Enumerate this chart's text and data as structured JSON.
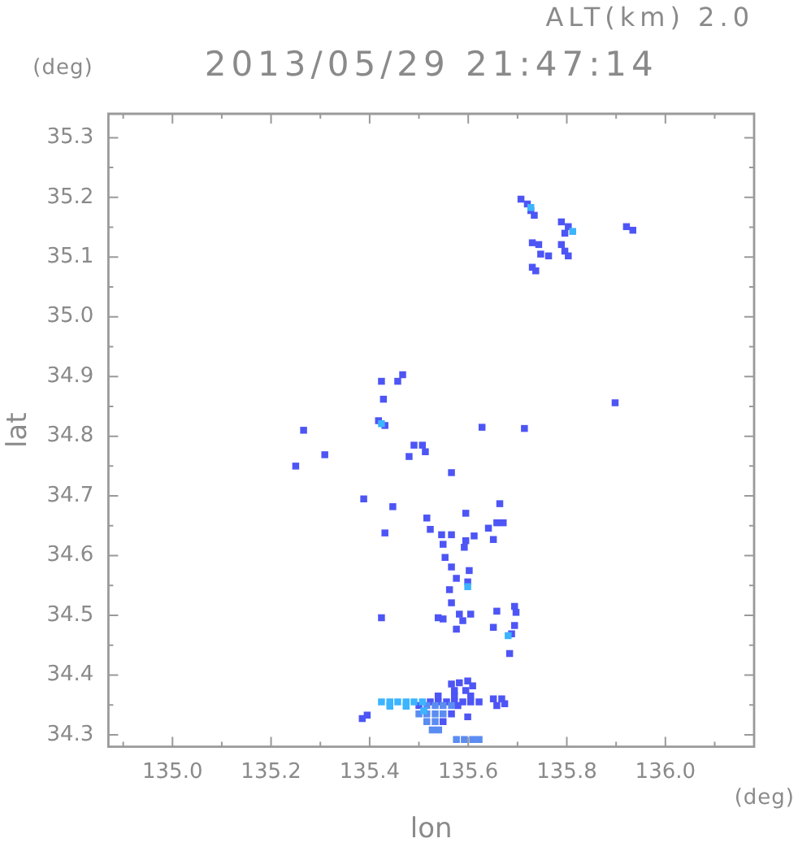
{
  "chart_data": {
    "type": "scatter",
    "title": "2013/05/29 21:47:14",
    "xlabel": "lon",
    "ylabel": "lat",
    "annotations": [
      "ALT(km) 2.0",
      "(deg)",
      "(deg)"
    ],
    "xlim": [
      134.87,
      136.18
    ],
    "ylim": [
      34.28,
      35.34
    ],
    "xticks": [
      {
        "value": 134.9,
        "label": null
      },
      {
        "value": 135.0,
        "label": "135.0"
      },
      {
        "value": 135.1,
        "label": null
      },
      135.2,
      {
        "value": 135.3,
        "label": null
      },
      135.4,
      {
        "value": 135.5,
        "label": null
      },
      135.6,
      {
        "value": 135.7,
        "label": null
      },
      135.8,
      {
        "value": 135.9,
        "label": null
      },
      {
        "value": 136.0,
        "label": "136.0"
      },
      {
        "value": 136.1,
        "label": null
      }
    ],
    "yticks": [
      34.3,
      {
        "value": 34.35,
        "label": null
      },
      34.4,
      {
        "value": 34.45,
        "label": null
      },
      34.5,
      {
        "value": 34.55,
        "label": null
      },
      34.6,
      {
        "value": 34.65,
        "label": null
      },
      34.7,
      {
        "value": 34.75,
        "label": null
      },
      34.8,
      {
        "value": 34.85,
        "label": null
      },
      34.9,
      {
        "value": 34.95,
        "label": null
      },
      {
        "value": 35.0,
        "label": "35.0"
      },
      {
        "value": 35.05,
        "label": null
      },
      35.1,
      {
        "value": 35.15,
        "label": null
      },
      35.2,
      {
        "value": 35.25,
        "label": null
      },
      35.3
    ],
    "marker": "square",
    "series": [
      {
        "color": "#4d55f5",
        "x": [
          135.707,
          135.72,
          135.727,
          135.734,
          135.789,
          135.803,
          135.796,
          135.789,
          135.796,
          135.803,
          135.73,
          135.743,
          135.747,
          135.763,
          135.73,
          135.737,
          135.921,
          135.934,
          135.898,
          135.424,
          135.457,
          135.467,
          135.428,
          135.418,
          135.431,
          135.49,
          135.507,
          135.513,
          135.48,
          135.628,
          135.714,
          135.309,
          135.266,
          135.25,
          135.566,
          135.388,
          135.447,
          135.664,
          135.431,
          135.595,
          135.516,
          135.523,
          135.546,
          135.566,
          135.595,
          135.612,
          135.641,
          135.658,
          135.671,
          135.651,
          135.592,
          135.549,
          135.553,
          135.566,
          135.602,
          135.576,
          135.599,
          135.562,
          135.566,
          135.539,
          135.549,
          135.582,
          135.589,
          135.576,
          135.605,
          135.658,
          135.651,
          135.694,
          135.697,
          135.694,
          135.688,
          135.684,
          135.424,
          135.385,
          135.395,
          135.523,
          135.539,
          135.556,
          135.572,
          135.589,
          135.605,
          135.622,
          135.539,
          135.572,
          135.605,
          135.566,
          135.582,
          135.599,
          135.609,
          135.572,
          135.595,
          135.651,
          135.668,
          135.658,
          135.674,
          135.5,
          135.579,
          135.566,
          135.549,
          135.599
        ],
        "values": [
          35.197,
          35.189,
          35.178,
          35.17,
          35.159,
          35.151,
          35.14,
          35.121,
          35.11,
          35.102,
          35.124,
          35.121,
          35.105,
          35.102,
          35.083,
          35.077,
          35.151,
          35.145,
          34.856,
          34.892,
          34.892,
          34.903,
          34.862,
          34.826,
          34.818,
          34.785,
          34.785,
          34.774,
          34.766,
          34.815,
          34.813,
          34.769,
          34.81,
          34.75,
          34.739,
          34.695,
          34.682,
          34.687,
          34.638,
          34.671,
          34.663,
          34.644,
          34.635,
          34.635,
          34.625,
          34.633,
          34.646,
          34.655,
          34.655,
          34.627,
          34.614,
          34.619,
          34.597,
          34.581,
          34.575,
          34.562,
          34.556,
          34.543,
          34.521,
          34.496,
          34.494,
          34.502,
          34.491,
          34.477,
          34.502,
          34.507,
          34.48,
          34.515,
          34.505,
          34.483,
          34.469,
          34.436,
          34.496,
          34.327,
          34.333,
          34.355,
          34.355,
          34.355,
          34.355,
          34.355,
          34.355,
          34.355,
          34.365,
          34.365,
          34.365,
          34.385,
          34.387,
          34.39,
          34.382,
          34.374,
          34.374,
          34.36,
          34.36,
          34.349,
          34.352,
          34.349,
          34.349,
          34.335,
          34.322,
          34.33
        ]
      },
      {
        "color": "#5b8cf2",
        "x": [
          135.516,
          135.533,
          135.549,
          135.566,
          135.5,
          135.516,
          135.533,
          135.549,
          135.516,
          135.533,
          135.527,
          135.54,
          135.576,
          135.592,
          135.609,
          135.622
        ],
        "values": [
          34.349,
          34.349,
          34.349,
          34.349,
          34.335,
          34.335,
          34.335,
          34.335,
          34.322,
          34.322,
          34.308,
          34.308,
          34.292,
          34.292,
          34.292,
          34.292
        ]
      },
      {
        "color": "#3cb4ff",
        "x": [
          135.424,
          135.599,
          135.681,
          135.727,
          135.812,
          135.424,
          135.441,
          135.457,
          135.474,
          135.49,
          135.507,
          135.441,
          135.474,
          135.51
        ],
        "values": [
          34.821,
          34.548,
          34.466,
          35.183,
          35.143,
          34.355,
          34.355,
          34.355,
          34.355,
          34.355,
          34.355,
          34.348,
          34.348,
          34.34
        ]
      }
    ]
  }
}
